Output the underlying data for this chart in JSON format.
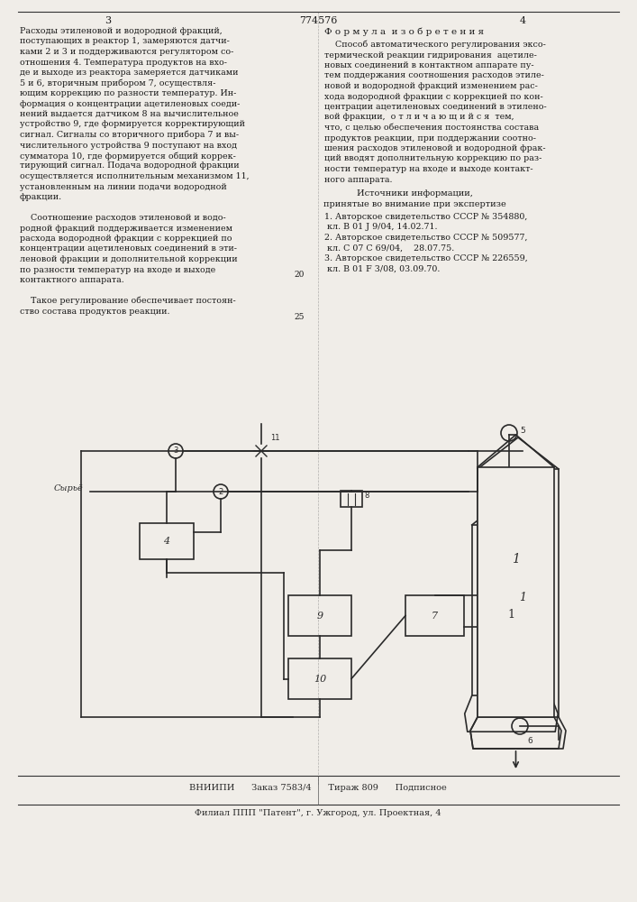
{
  "bg_color": "#f5f5f0",
  "text_color": "#1a1a1a",
  "page_header": "3                              774576                              4",
  "left_column_text": [
    "Расходы этиленовой и водородной фракций,",
    "поступающих в реактор 1, замеряются датчи-",
    "ками 2 и 3 и поддерживаются регулятором со-",
    "отношения 4. Температура продуктов на вхо-",
    "де и выходе из реактора замеряется датчиками",
    "5 и 6, вторичным прибором 7, осуществля-",
    "ющим коррекцию по разности температур. Ин-",
    "формация о концентрации ацетиленовых соеди-",
    "нений выдается датчиком 8 на вычислительное",
    "устройство 9, где формируется корректирующий",
    "сигнал. Сигналы со вторичного прибора 7 и вы-",
    "числительного устройства 9 поступают на вход",
    "сумматора 10, где формируется общий коррек-",
    "тирующий сигнал. Подача водородной фракции",
    "осуществляется исполнительным механизмом 11,",
    "установленным на линии подачи водородной",
    "фракции.",
    "",
    "    Соотношение расходов этиленовой и водо-",
    "родной фракций поддерживается изменением",
    "расхода водородной фракции с коррекцией по",
    "концентрации ацетиленовых соединений в эти-",
    "леновой фракции и дополнительной коррекции",
    "по разности температур на входе и выходе",
    "контактного аппарата.",
    "",
    "    Такое регулирование обеспечивает постоян-",
    "ство состава продуктов реакции."
  ],
  "right_column_header": "Ф о р м у л а  и з о б р е т е н и я",
  "right_column_text": [
    "    Способ автоматического регулирования эксо-",
    "термической реакции гидрирования  ацетиле-",
    "новых соединений в контактном аппарате пу-",
    "тем поддержания соотношения расходов этиле-",
    "новой и водородной фракций изменением рас-",
    "хода водородной фракции с коррекцией по кон-",
    "центрации ацетиленовых соединений в этилено-",
    "вой фракции,  о т л и ч а ю щ и й с я  тем,",
    "что, с целью обеспечения постоянства состава",
    "продуктов реакции, при поддержании соотно-",
    "шения расходов этиленовой и водородной фрак-",
    "ций вводят дополнительную коррекцию по раз-",
    "ности температур на входе и выходе контакт-",
    "ного аппарата."
  ],
  "sources_header": "Источники информации,",
  "sources_subheader": "принятые во внимание при экспертизе",
  "sources": [
    "1. Авторское свидетельство СССР № 354880,",
    " кл. В 01 J 9/04, 14.02.71.",
    "2. Авторское свидетельство СССР № 509577,",
    " кл. С 07 С 69/04,    28.07.75.",
    "3. Авторское свидетельство СССР № 226559,",
    " кл. В 01 F 3/08, 03.09.70."
  ],
  "line_numbers": [
    "20",
    "25"
  ],
  "footer_line1": "ВНИИПИ      Заказ 7583/4      Тираж 809      Подписное",
  "footer_line2": "Филиал ППП \"Патент\", г. Ужгород, ул. Проектная, 4"
}
